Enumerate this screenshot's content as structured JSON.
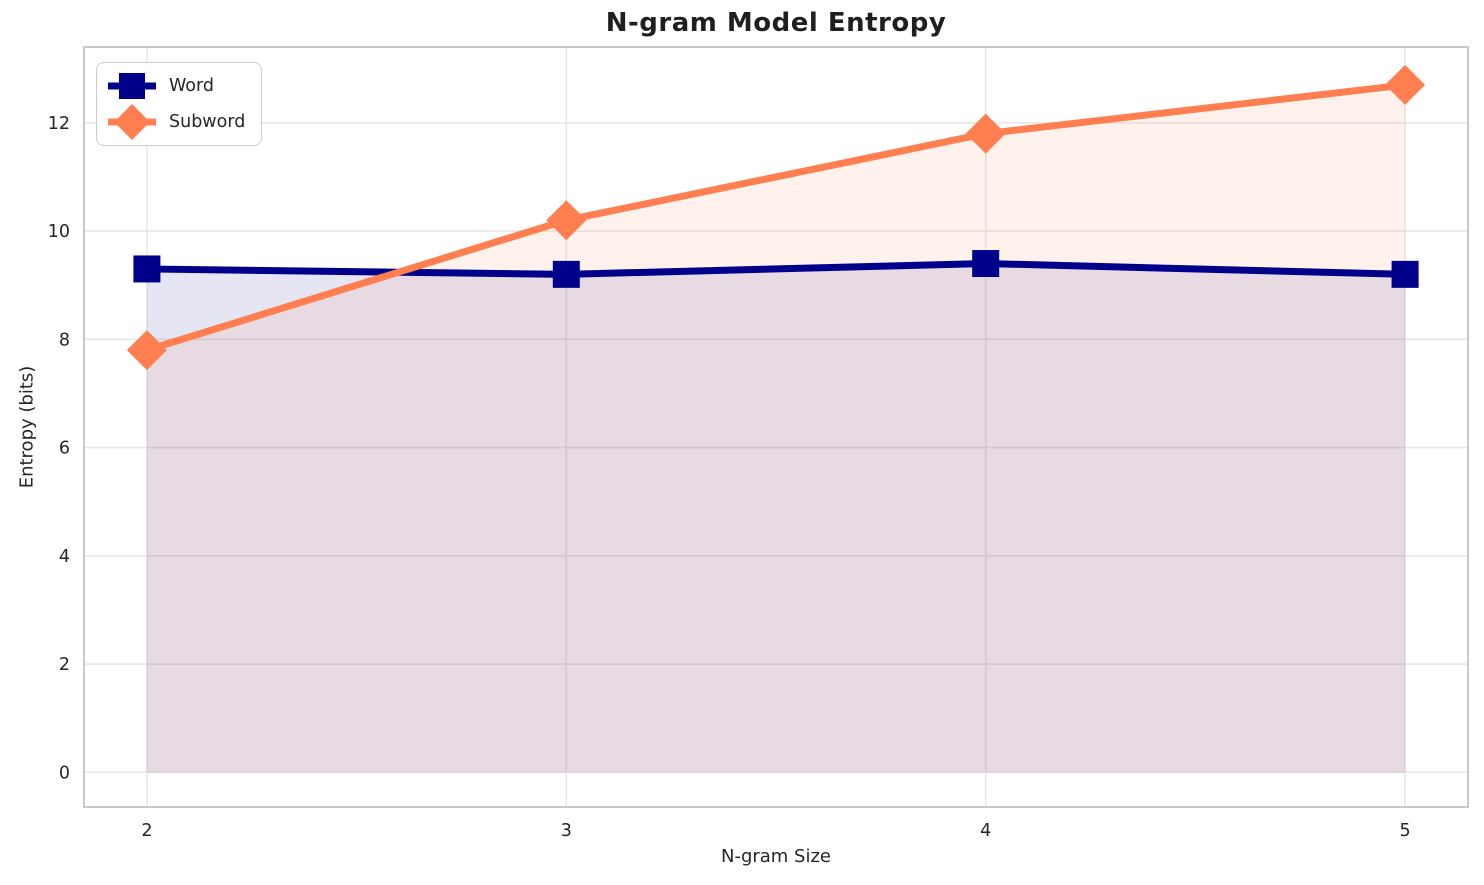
{
  "chart_data": {
    "type": "line",
    "title": "N-gram Model Entropy",
    "xlabel": "N-gram Size",
    "ylabel": "Entropy (bits)",
    "x": [
      2,
      3,
      4,
      5
    ],
    "series": [
      {
        "name": "Word",
        "color": "#00008b",
        "marker": "square",
        "values": [
          9.3,
          9.2,
          9.4,
          9.2
        ]
      },
      {
        "name": "Subword",
        "color": "#ff7f50",
        "marker": "diamond",
        "values": [
          7.8,
          10.2,
          11.8,
          12.7
        ]
      }
    ],
    "fill_to_zero": true,
    "fill_alpha": 0.1,
    "xticks": [
      "2",
      "3",
      "4",
      "5"
    ],
    "xtick_values": [
      2,
      3,
      4,
      5
    ],
    "yticks": [
      "0",
      "2",
      "4",
      "6",
      "8",
      "10",
      "12"
    ],
    "ytick_values": [
      0,
      2,
      4,
      6,
      8,
      10,
      12
    ],
    "xlim": [
      1.85,
      5.15
    ],
    "ylim": [
      -0.64,
      13.4
    ],
    "grid": true,
    "grid_color": "#e7e7e7",
    "spine_color": "#c9c9c9",
    "tick_label_color": "#262626",
    "legend_position": "upper left"
  }
}
